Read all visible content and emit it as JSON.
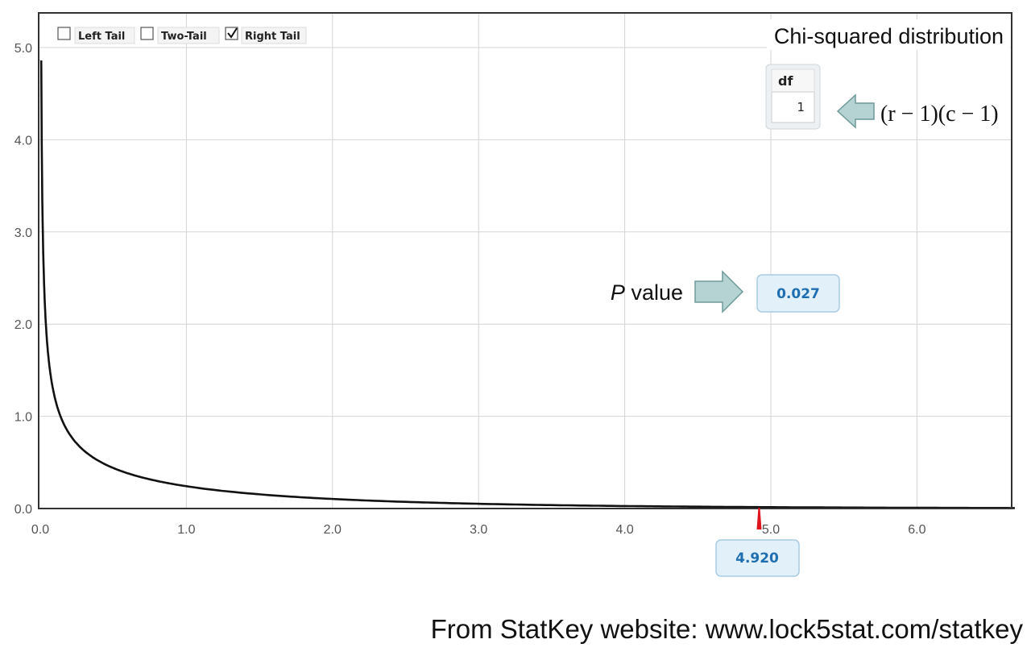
{
  "tail_options": [
    {
      "label": "Left Tail",
      "checked": false
    },
    {
      "label": "Two-Tail",
      "checked": false
    },
    {
      "label": "Right Tail",
      "checked": true
    }
  ],
  "distribution_title": "Chi-squared distribution",
  "df": {
    "header": "df",
    "value": "1"
  },
  "df_formula": "(r − 1)(c − 1)",
  "p_value": {
    "label_italic": "P",
    "label_rest": " value",
    "value": "0.027"
  },
  "statistic": {
    "value": "4.920"
  },
  "source": "From StatKey website: www.lock5stat.com/statkey",
  "colors": {
    "curve": "#111111",
    "marker": "#e0141e",
    "box_fill": "#e2f0fa",
    "box_border": "#a9cbe3",
    "arrow_fill": "#b5d3d3",
    "arrow_stroke": "#6f9a9a",
    "grid": "#d4d4d4"
  },
  "chart_data": {
    "type": "line",
    "title": "Chi-squared distribution",
    "series": [
      {
        "values": "chi-squared density, df = 1"
      }
    ],
    "df": 1,
    "xlim": [
      0,
      6.7
    ],
    "ylim": [
      0,
      5.2
    ],
    "x_ticks": [
      "0.0",
      "1.0",
      "2.0",
      "3.0",
      "4.0",
      "5.0",
      "6.0"
    ],
    "y_ticks": [
      "0.0",
      "1.0",
      "2.0",
      "3.0",
      "4.0",
      "5.0"
    ],
    "x_tick_values": [
      0,
      1,
      2,
      3,
      4,
      5,
      6
    ],
    "y_tick_values": [
      0,
      1,
      2,
      3,
      4,
      5
    ],
    "marker_x": 4.92,
    "tail": "right",
    "p_value": 0.027,
    "grid": true
  }
}
